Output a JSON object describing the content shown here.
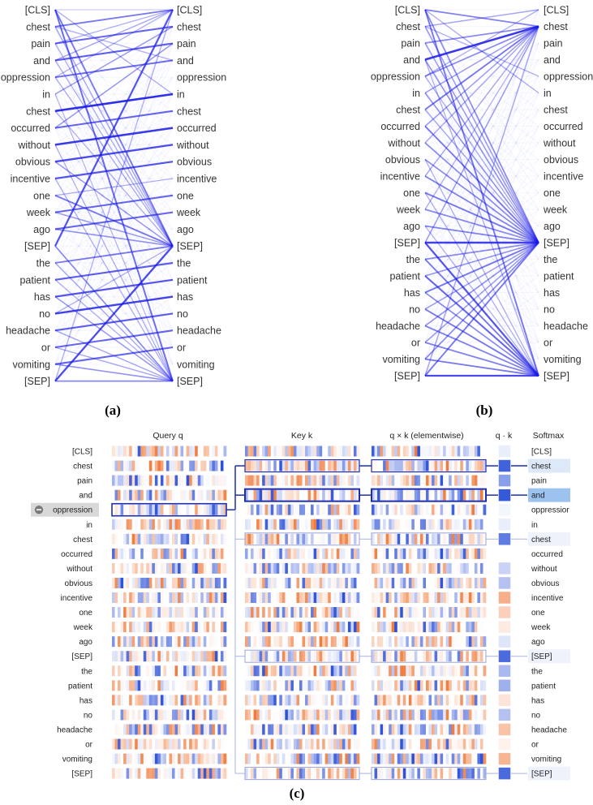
{
  "tokens": [
    "[CLS]",
    "chest",
    "pain",
    "and",
    "oppression",
    "in",
    "chest",
    "occurred",
    "without",
    "obvious",
    "incentive",
    "one",
    "week",
    "ago",
    "[SEP]",
    "the",
    "patient",
    "has",
    "no",
    "headache",
    "or",
    "vomiting",
    "[SEP]"
  ],
  "softmax_tokens": [
    "[CLS]",
    "chest",
    "pain",
    "and",
    "oppressior",
    "in",
    "chest",
    "occurred",
    "without",
    "obvious",
    "incentive",
    "one",
    "week",
    "ago",
    "[SEP]",
    "the",
    "patient",
    "has",
    "no",
    "headache",
    "or",
    "vomiting",
    "[SEP]"
  ],
  "captions": {
    "a": "(a)",
    "b": "(b)",
    "c": "(c)"
  },
  "panel_c": {
    "headers": {
      "query": "Query q",
      "key": "Key k",
      "product": "q × k (elementwise)",
      "dot": "q · k",
      "softmax": "Softmax"
    },
    "selected_query_index": 4,
    "selected_token": "oppression",
    "dot_scores": [
      0.1,
      0.9,
      0.55,
      0.95,
      0.05,
      0.1,
      0.75,
      0.0,
      0.25,
      0.35,
      -0.6,
      -0.35,
      -0.15,
      0.15,
      0.85,
      0.4,
      0.45,
      -0.2,
      0.35,
      -0.45,
      -0.1,
      -0.55,
      0.85
    ],
    "highlighted_keys": [
      1,
      3,
      6,
      14,
      22
    ],
    "strong_keys": [
      1,
      3
    ],
    "colors": {
      "positive": "#2b50d8",
      "negative": "#f07a3a",
      "highlight": "#9cc2f0",
      "soft": "#dde9f8"
    }
  },
  "panel_a": {
    "edges": [
      [
        0,
        0,
        0.15
      ],
      [
        0,
        14,
        0.6
      ],
      [
        0,
        22,
        0.65
      ],
      [
        0,
        5,
        0.3
      ],
      [
        1,
        0,
        0.6
      ],
      [
        1,
        3,
        0.3
      ],
      [
        1,
        14,
        0.35
      ],
      [
        2,
        1,
        0.7
      ],
      [
        2,
        0,
        0.3
      ],
      [
        2,
        14,
        0.3
      ],
      [
        3,
        2,
        0.75
      ],
      [
        3,
        0,
        0.35
      ],
      [
        3,
        14,
        0.3
      ],
      [
        4,
        3,
        0.65
      ],
      [
        4,
        0,
        0.3
      ],
      [
        4,
        14,
        0.3
      ],
      [
        5,
        1,
        0.4
      ],
      [
        5,
        22,
        0.25
      ],
      [
        6,
        5,
        1.0
      ],
      [
        6,
        14,
        0.3
      ],
      [
        7,
        6,
        0.7
      ],
      [
        7,
        2,
        0.4
      ],
      [
        8,
        7,
        0.95
      ],
      [
        8,
        22,
        0.3
      ],
      [
        9,
        8,
        0.85
      ],
      [
        9,
        14,
        0.4
      ],
      [
        10,
        9,
        0.8
      ],
      [
        10,
        22,
        0.3
      ],
      [
        11,
        14,
        0.6
      ],
      [
        11,
        10,
        0.3
      ],
      [
        12,
        11,
        0.7
      ],
      [
        12,
        14,
        0.4
      ],
      [
        13,
        12,
        0.7
      ],
      [
        13,
        14,
        0.45
      ],
      [
        14,
        0,
        0.8
      ],
      [
        14,
        22,
        0.5
      ],
      [
        15,
        14,
        0.6
      ],
      [
        15,
        22,
        0.35
      ],
      [
        16,
        15,
        0.75
      ],
      [
        16,
        22,
        0.3
      ],
      [
        17,
        16,
        0.8
      ],
      [
        17,
        22,
        0.4
      ],
      [
        18,
        17,
        0.9
      ],
      [
        18,
        14,
        0.3
      ],
      [
        19,
        18,
        0.75
      ],
      [
        19,
        22,
        0.35
      ],
      [
        20,
        19,
        0.7
      ],
      [
        20,
        22,
        0.35
      ],
      [
        21,
        20,
        0.7
      ],
      [
        21,
        22,
        0.45
      ],
      [
        22,
        14,
        0.85
      ],
      [
        22,
        22,
        0.5
      ],
      [
        22,
        0,
        0.3
      ]
    ]
  },
  "panel_b": {
    "edges": [
      [
        0,
        1,
        0.55
      ],
      [
        0,
        14,
        0.5
      ],
      [
        0,
        22,
        0.6
      ],
      [
        0,
        5,
        0.3
      ],
      [
        1,
        14,
        0.4
      ],
      [
        1,
        0,
        0.35
      ],
      [
        1,
        4,
        0.3
      ],
      [
        2,
        1,
        0.5
      ],
      [
        2,
        14,
        0.4
      ],
      [
        3,
        1,
        0.95
      ],
      [
        3,
        14,
        0.45
      ],
      [
        3,
        22,
        0.3
      ],
      [
        4,
        1,
        0.5
      ],
      [
        4,
        0,
        0.3
      ],
      [
        4,
        14,
        0.3
      ],
      [
        5,
        14,
        0.45
      ],
      [
        5,
        1,
        0.4
      ],
      [
        6,
        1,
        0.6
      ],
      [
        6,
        14,
        0.35
      ],
      [
        7,
        14,
        0.6
      ],
      [
        7,
        1,
        0.4
      ],
      [
        8,
        1,
        0.35
      ],
      [
        8,
        14,
        0.5
      ],
      [
        9,
        14,
        0.5
      ],
      [
        9,
        22,
        0.3
      ],
      [
        10,
        14,
        0.55
      ],
      [
        10,
        1,
        0.35
      ],
      [
        11,
        14,
        0.6
      ],
      [
        11,
        22,
        0.3
      ],
      [
        12,
        14,
        0.5
      ],
      [
        12,
        1,
        0.3
      ],
      [
        13,
        14,
        0.55
      ],
      [
        13,
        22,
        0.3
      ],
      [
        14,
        14,
        0.9
      ],
      [
        14,
        22,
        0.8
      ],
      [
        14,
        1,
        0.4
      ],
      [
        15,
        22,
        0.6
      ],
      [
        15,
        14,
        0.5
      ],
      [
        16,
        22,
        0.7
      ],
      [
        16,
        14,
        0.45
      ],
      [
        17,
        14,
        0.6
      ],
      [
        17,
        22,
        0.5
      ],
      [
        18,
        22,
        0.6
      ],
      [
        18,
        14,
        0.4
      ],
      [
        19,
        22,
        0.55
      ],
      [
        19,
        14,
        0.45
      ],
      [
        20,
        22,
        0.55
      ],
      [
        20,
        14,
        0.4
      ],
      [
        21,
        22,
        0.6
      ],
      [
        21,
        14,
        0.5
      ],
      [
        22,
        22,
        0.85
      ],
      [
        22,
        14,
        0.6
      ],
      [
        22,
        1,
        0.35
      ]
    ]
  }
}
